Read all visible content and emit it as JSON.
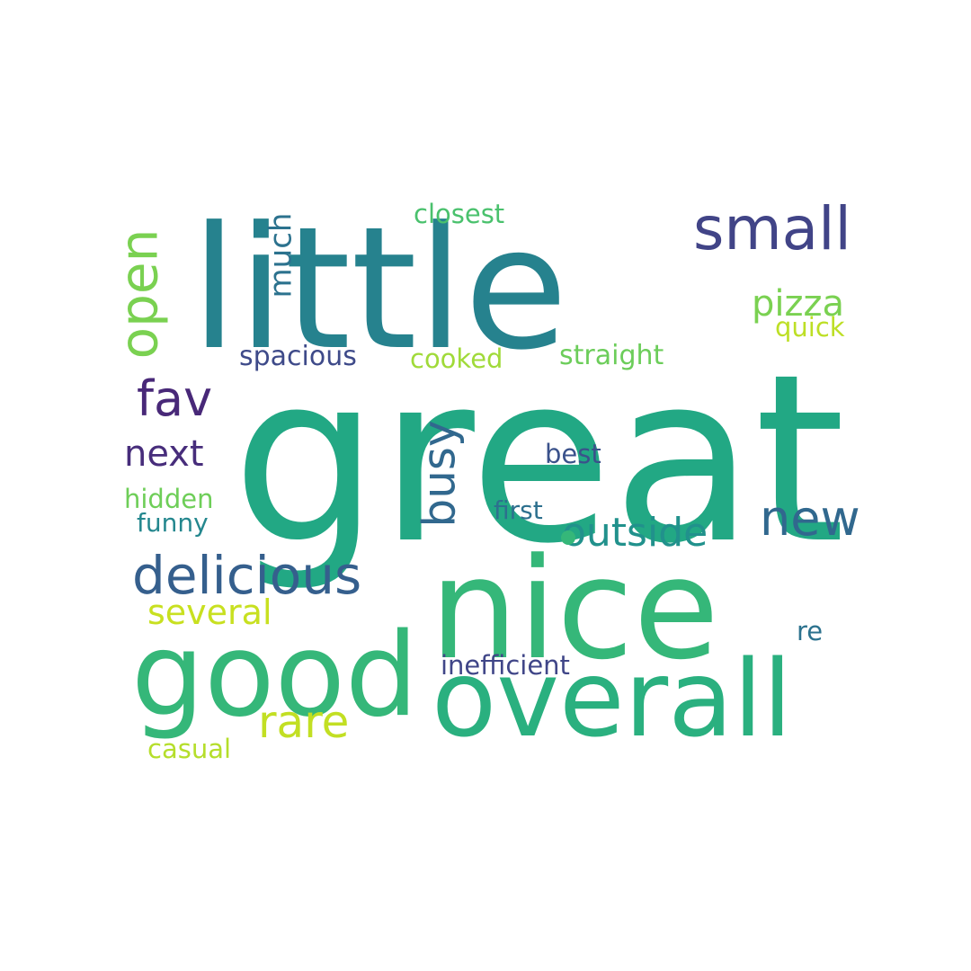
{
  "cloud": {
    "words": [
      {
        "text": "great",
        "color": "#22a884"
      },
      {
        "text": "little",
        "color": "#26828e"
      },
      {
        "text": "nice",
        "color": "#35b779"
      },
      {
        "text": "good",
        "color": "#35b779"
      },
      {
        "text": "overall",
        "color": "#2ab07f"
      },
      {
        "text": "small",
        "color": "#414487"
      },
      {
        "text": "delicious",
        "color": "#355f8d"
      },
      {
        "text": "open",
        "color": "#7ad151"
      },
      {
        "text": "fav",
        "color": "#482878"
      },
      {
        "text": "new",
        "color": "#31688e"
      },
      {
        "text": "busy",
        "color": "#31688e"
      },
      {
        "text": "rare",
        "color": "#c2df23"
      },
      {
        "text": "outside",
        "color": "#21918c"
      },
      {
        "text": "next",
        "color": "#472d7b"
      },
      {
        "text": "pizza",
        "color": "#7ad151"
      },
      {
        "text": "much",
        "color": "#2c728e"
      },
      {
        "text": "several",
        "color": "#c8e020"
      },
      {
        "text": "closest",
        "color": "#4ac16d"
      },
      {
        "text": "straight",
        "color": "#6ccd5a"
      },
      {
        "text": "spacious",
        "color": "#3e4a89"
      },
      {
        "text": "cooked",
        "color": "#a0da39"
      },
      {
        "text": "quick",
        "color": "#bddf26"
      },
      {
        "text": "hidden",
        "color": "#6ece58"
      },
      {
        "text": "funny",
        "color": "#24878e"
      },
      {
        "text": "best",
        "color": "#3b528b"
      },
      {
        "text": "first",
        "color": "#2d708e"
      },
      {
        "text": "inefficient",
        "color": "#404688"
      },
      {
        "text": "casual",
        "color": "#b5de2b"
      },
      {
        "text": "re",
        "color": "#2c728e"
      }
    ]
  }
}
